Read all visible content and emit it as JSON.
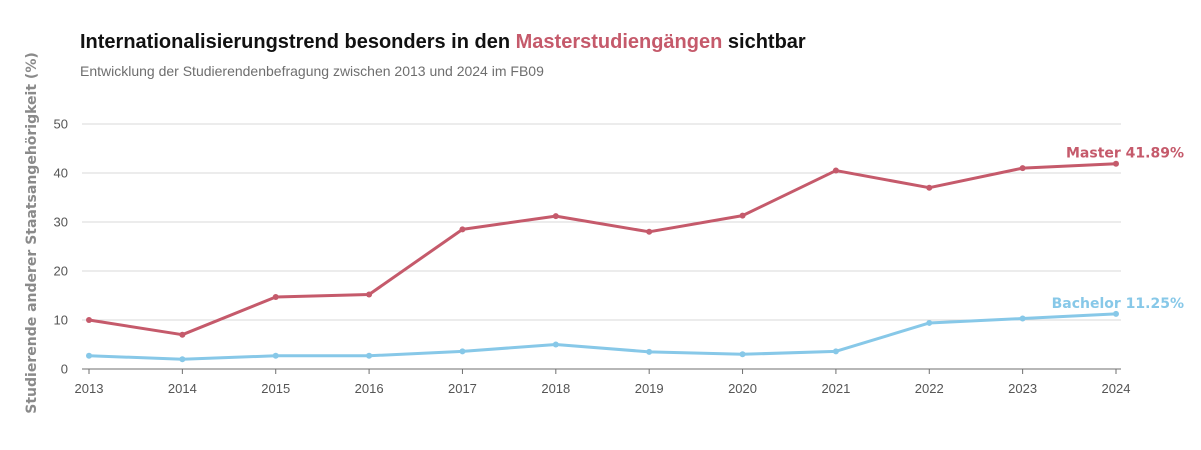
{
  "chart_data": {
    "type": "line",
    "title_parts": [
      "Internationalisierungstrend besonders in den ",
      "Masterstudiengängen",
      " sichtbar"
    ],
    "subtitle": "Entwicklung der Studierendenbefragung zwischen 2013 und 2024 im FB09",
    "ylabel": "Studierende anderer Staatsangehörigkeit (%)",
    "xlabel": "",
    "x": [
      "2013",
      "2014",
      "2015",
      "2016",
      "2017",
      "2018",
      "2019",
      "2020",
      "2021",
      "2022",
      "2023",
      "2024"
    ],
    "ylim": [
      0,
      50
    ],
    "yticks": [
      0,
      10,
      20,
      30,
      40,
      50
    ],
    "grid": true,
    "legend": "none",
    "series": [
      {
        "name": "Master",
        "color": "#c55a6b",
        "values": [
          10.0,
          7.0,
          14.7,
          15.2,
          28.5,
          31.2,
          28.0,
          31.3,
          40.5,
          37.0,
          41.0,
          41.89
        ],
        "end_label": "Master 41.89%"
      },
      {
        "name": "Bachelor",
        "color": "#87c8e8",
        "values": [
          2.7,
          2.0,
          2.7,
          2.7,
          3.6,
          5.0,
          3.5,
          3.0,
          3.6,
          9.4,
          10.3,
          11.25
        ],
        "end_label": "Bachelor 11.25%"
      }
    ]
  }
}
